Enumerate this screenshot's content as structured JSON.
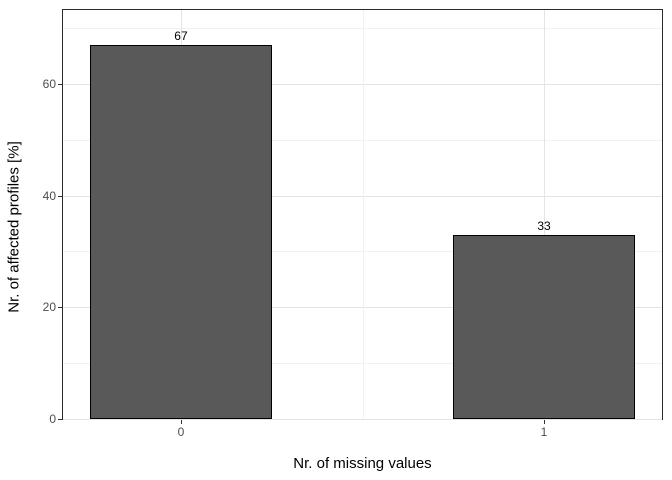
{
  "chart_data": {
    "type": "bar",
    "title": "",
    "xlabel": "Nr. of missing values",
    "ylabel": "Nr. of affected profiles [%]",
    "categories": [
      "0",
      "1"
    ],
    "x": [
      0,
      1
    ],
    "values": [
      67,
      33
    ],
    "bar_labels": [
      "67",
      "33"
    ],
    "bar_width": 0.5,
    "xlim": [
      -0.325,
      1.325
    ],
    "ylim": [
      0,
      73.2
    ],
    "y_major_ticks": [
      0,
      20,
      40,
      60
    ],
    "y_minor_ticks": [
      10,
      30,
      50,
      70
    ],
    "x_major_ticks": [
      0,
      1
    ],
    "x_minor_ticks": [
      0.5
    ],
    "grid": true,
    "legend": "none",
    "colors": {
      "bar_fill": "#595959",
      "bar_stroke": "#000000",
      "grid_major": "#e4e4e4",
      "grid_minor": "#f1f1f1",
      "panel_border": "#2b2b2b",
      "tick_mark": "#333333",
      "tick_text": "#4d4d4d",
      "axis_title_text": "#000000",
      "background": "#ffffff"
    }
  }
}
